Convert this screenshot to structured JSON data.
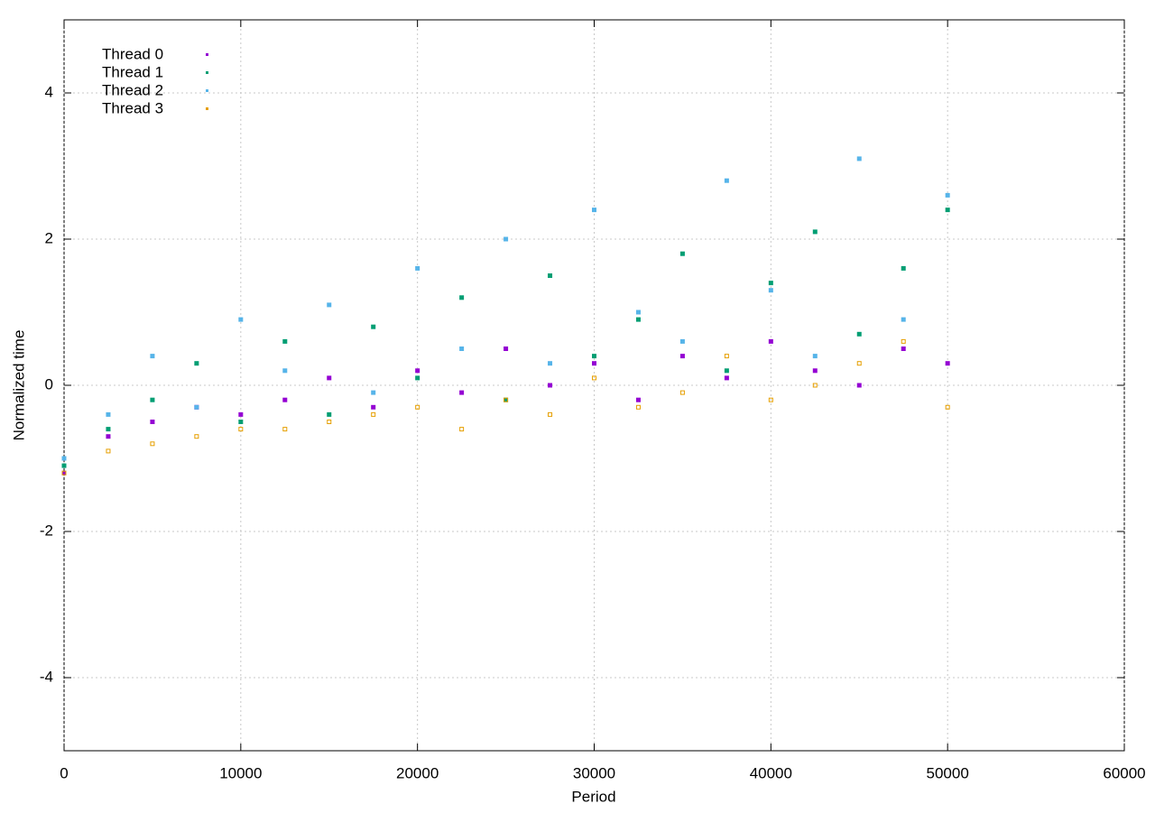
{
  "chart_data": {
    "type": "scatter",
    "x_label": "Period",
    "y_label": "Normalized time",
    "x": [
      0,
      2500,
      5000,
      7500,
      10000,
      12500,
      15000,
      17500,
      20000,
      22500,
      25000,
      27500,
      30000,
      32500,
      35000,
      37500,
      40000,
      42500,
      45000,
      47500,
      50000
    ],
    "series": [
      {
        "name": "Thread 0",
        "color": "#9400d3",
        "values": [
          -1.2,
          -0.7,
          -0.5,
          -0.3,
          -0.4,
          -0.2,
          0.1,
          -0.3,
          0.2,
          -0.1,
          0.5,
          0.0,
          0.3,
          -0.2,
          0.4,
          0.1,
          0.6,
          0.2,
          0.0,
          0.5,
          0.3
        ]
      },
      {
        "name": "Thread 1",
        "color": "#009e73",
        "values": [
          -1.1,
          -0.6,
          -0.2,
          0.3,
          -0.5,
          0.6,
          -0.4,
          0.8,
          0.1,
          1.2,
          -0.2,
          1.5,
          0.4,
          0.9,
          1.8,
          0.2,
          1.4,
          2.1,
          0.7,
          1.6,
          2.4
        ]
      },
      {
        "name": "Thread 2",
        "color": "#56b4e9",
        "values": [
          -1.0,
          -0.4,
          0.4,
          -0.3,
          0.9,
          0.2,
          1.1,
          -0.1,
          1.6,
          0.5,
          2.0,
          0.3,
          2.4,
          1.0,
          0.6,
          2.8,
          1.3,
          0.4,
          3.1,
          0.9,
          2.6
        ]
      },
      {
        "name": "Thread 3",
        "color": "#e69f00",
        "values": [
          -1.2,
          -0.9,
          -0.8,
          -0.7,
          -0.6,
          -0.6,
          -0.5,
          -0.4,
          -0.3,
          -0.6,
          -0.2,
          -0.4,
          0.1,
          -0.3,
          -0.1,
          0.4,
          -0.2,
          0.0,
          0.3,
          0.6,
          -0.3
        ]
      }
    ],
    "xlim": [
      0,
      60000
    ],
    "xticks": [
      0,
      10000,
      20000,
      30000,
      40000,
      50000,
      60000
    ],
    "ylim": [
      -5,
      5
    ],
    "yticks": [
      -4,
      -2,
      0,
      2,
      4
    ],
    "grid": true,
    "legend": "top-left"
  }
}
